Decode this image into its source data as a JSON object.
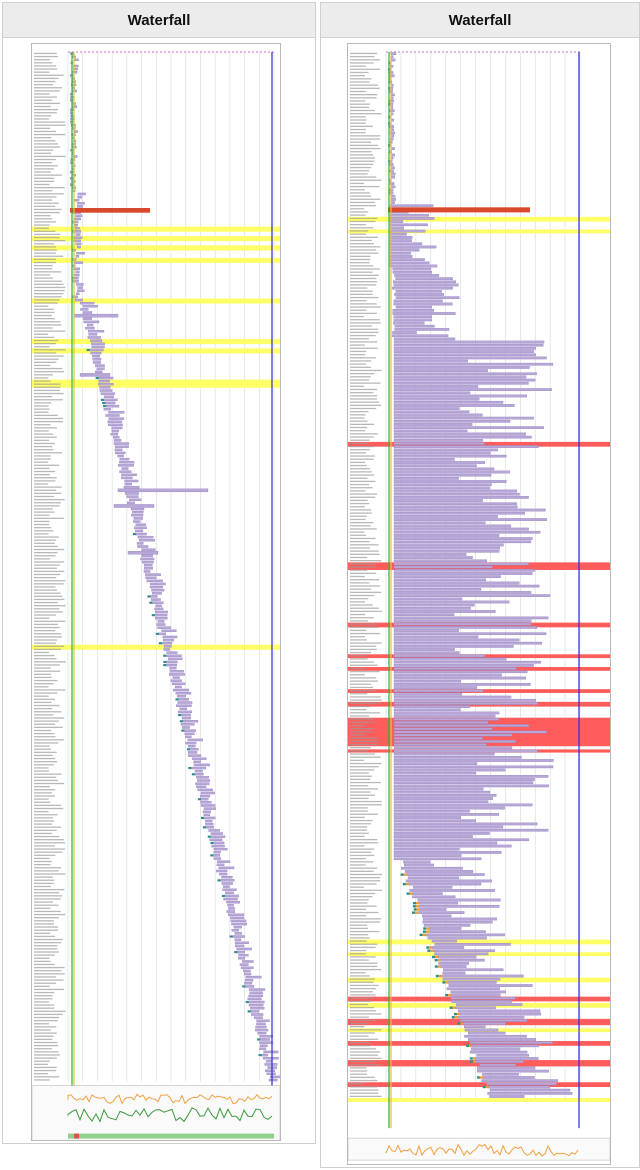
{
  "panels": [
    {
      "title": "Waterfall"
    },
    {
      "title": "Waterfall"
    }
  ],
  "colors": {
    "label_text": "#9a9a9a",
    "grid": "#d8d8d8",
    "highlight_row": "#ffff66",
    "error_row": "#ff5c5c",
    "request_bar": "#b7a6d6",
    "request_bar_edge": "#8a77bb",
    "render_start_line": "#2fae2f",
    "dom_loaded_line": "#d2c93b",
    "onload_line": "#2b2bd6",
    "red_bar": "#d9482b",
    "dns": "#2d8e86",
    "connect": "#f09a30",
    "ssl": "#a855c8",
    "ttfb": "#7db85a",
    "cpu": "#f0a040",
    "bandwidth": "#3a9a3a"
  }
}
